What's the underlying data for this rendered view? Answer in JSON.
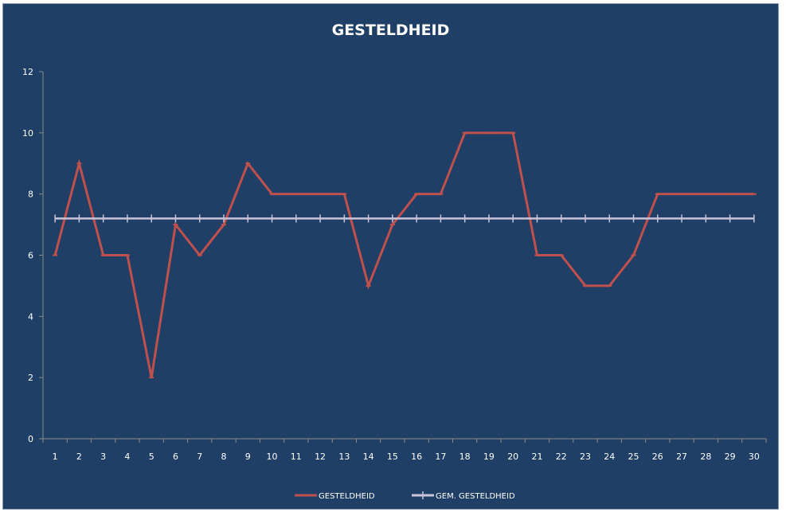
{
  "chart_data": {
    "type": "line",
    "title": "GESTELDHEID",
    "xlabel": "",
    "ylabel": "",
    "categories": [
      "1",
      "2",
      "3",
      "4",
      "5",
      "6",
      "7",
      "8",
      "9",
      "10",
      "11",
      "12",
      "13",
      "14",
      "15",
      "16",
      "17",
      "18",
      "19",
      "20",
      "21",
      "22",
      "23",
      "24",
      "25",
      "26",
      "27",
      "28",
      "29",
      "30"
    ],
    "ylim": [
      0,
      12
    ],
    "yticks": [
      0,
      2,
      4,
      6,
      8,
      10,
      12
    ],
    "grid": false,
    "legend_position": "bottom",
    "series": [
      {
        "name": "GESTELDHEID",
        "color": "#c0504d",
        "values": [
          6,
          9,
          6,
          6,
          2,
          7,
          6,
          7,
          9,
          8,
          8,
          8,
          8,
          5,
          7,
          8,
          8,
          10,
          10,
          10,
          6,
          6,
          5,
          5,
          6,
          8,
          8,
          8,
          8,
          8
        ]
      },
      {
        "name": "GEM. GESTELDHEID",
        "color": "#c9c3da",
        "values": [
          7.2,
          7.2,
          7.2,
          7.2,
          7.2,
          7.2,
          7.2,
          7.2,
          7.2,
          7.2,
          7.2,
          7.2,
          7.2,
          7.2,
          7.2,
          7.2,
          7.2,
          7.2,
          7.2,
          7.2,
          7.2,
          7.2,
          7.2,
          7.2,
          7.2,
          7.2,
          7.2,
          7.2,
          7.2,
          7.2
        ]
      }
    ]
  }
}
